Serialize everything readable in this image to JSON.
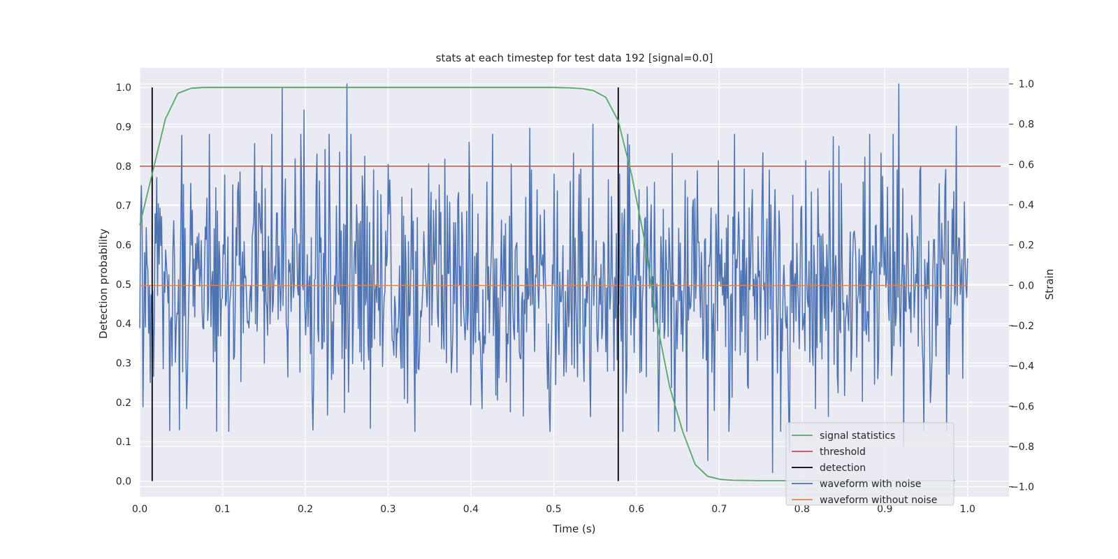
{
  "chart_data": {
    "type": "line",
    "title": "stats at each timestep for test data 192 [signal=0.0]",
    "xlabel": "Time (s)",
    "ylabel": "Detection probability",
    "y2label": "Strain",
    "xlim": [
      0.0,
      1.05
    ],
    "ylim": [
      -0.04,
      1.05
    ],
    "y2lim": [
      -1.05,
      1.08
    ],
    "xticks": [
      "0.0",
      "0.1",
      "0.2",
      "0.3",
      "0.4",
      "0.5",
      "0.6",
      "0.7",
      "0.8",
      "0.9",
      "1.0"
    ],
    "yticks": [
      "0.0",
      "0.1",
      "0.2",
      "0.3",
      "0.4",
      "0.5",
      "0.6",
      "0.7",
      "0.8",
      "0.9",
      "1.0"
    ],
    "y2ticks": [
      "−1.0",
      "−0.8",
      "−0.6",
      "−0.4",
      "−0.2",
      "0.0",
      "0.2",
      "0.4",
      "0.6",
      "0.8",
      "1.0"
    ],
    "grid": true,
    "legend_position": "bottom-right",
    "colors": {
      "background": "#eaeaf2",
      "signal": "#55a868",
      "threshold": "#c44e52",
      "detection": "#000000",
      "noisy": "#4c72b0",
      "clean": "#dd8452"
    },
    "series": [
      {
        "name": "signal statistics",
        "axis": "left",
        "x": [
          0.0,
          0.015,
          0.031,
          0.046,
          0.062,
          0.077,
          0.1,
          0.2,
          0.3,
          0.4,
          0.5,
          0.52,
          0.535,
          0.548,
          0.563,
          0.578,
          0.594,
          0.609,
          0.625,
          0.64,
          0.656,
          0.671,
          0.686,
          0.702,
          0.717,
          0.75,
          0.8,
          0.9,
          0.985
        ],
        "y": [
          0.65,
          0.78,
          0.92,
          0.985,
          0.998,
          1.0,
          1.0,
          1.0,
          1.0,
          1.0,
          1.0,
          0.999,
          0.997,
          0.992,
          0.975,
          0.915,
          0.78,
          0.62,
          0.4,
          0.24,
          0.125,
          0.042,
          0.012,
          0.004,
          0.002,
          0.001,
          0.001,
          0.001,
          0.001
        ]
      },
      {
        "name": "threshold",
        "axis": "left",
        "x": [
          0.0,
          1.04
        ],
        "y": [
          0.8,
          0.8
        ]
      },
      {
        "name": "detection",
        "axis": "left",
        "x_lines": [
          0.015,
          0.578
        ],
        "y_range": [
          0.0,
          1.0
        ]
      },
      {
        "name": "waveform with noise",
        "axis": "right",
        "x_range": [
          0.0,
          1.0
        ],
        "samples": 1024,
        "amplitude_range": [
          -0.93,
          1.0
        ],
        "peak_maxima": {
          "0.25": 1.0,
          "0.917": 1.0,
          "0.172": 0.98,
          "0.198": 0.87,
          "0.547": 0.8,
          "0.471": 0.78,
          "0.986": 0.79
        },
        "peak_minima": {
          "0.764": -0.93,
          "0.686": -0.87,
          "0.923": -0.8,
          "0.785": -0.83,
          "0.279": -0.71
        }
      },
      {
        "name": "waveform without noise",
        "axis": "right",
        "x": [
          0.0,
          1.0
        ],
        "y": [
          0.0,
          0.0
        ]
      }
    ]
  }
}
